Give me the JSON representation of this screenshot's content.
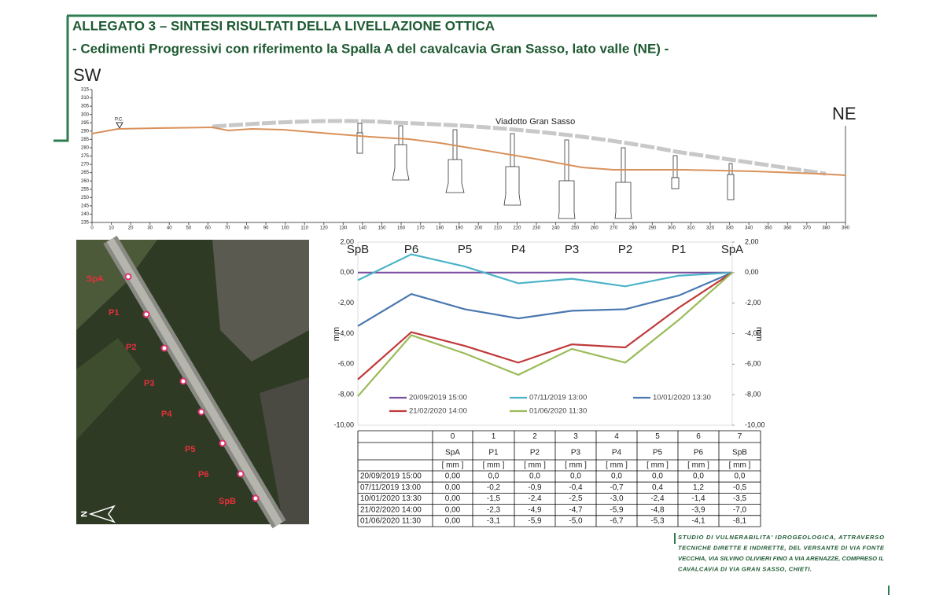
{
  "header": {
    "title": "ALLEGATO 3 – SINTESI RISULTATI DELLA LIVELLAZIONE OTTICA",
    "subtitle": "- Cedimenti Progressivi con riferimento la Spalla A del cavalcavia Gran Sasso, lato valle (NE) -"
  },
  "profile": {
    "left_label": "SW",
    "right_label": "NE",
    "bridge_label": "Viadotto Gran Sasso",
    "pc_label": "P.C.",
    "xlim": [
      0,
      390
    ],
    "ylim": [
      235,
      315
    ],
    "xticks": [
      0,
      10,
      20,
      30,
      40,
      50,
      60,
      70,
      80,
      90,
      100,
      110,
      120,
      130,
      140,
      150,
      160,
      170,
      180,
      190,
      200,
      210,
      220,
      230,
      240,
      250,
      260,
      270,
      280,
      290,
      300,
      310,
      320,
      330,
      340,
      350,
      360,
      370,
      380,
      390
    ],
    "yticks": [
      235,
      240,
      245,
      250,
      255,
      260,
      265,
      270,
      275,
      280,
      285,
      290,
      295,
      300,
      305,
      310,
      315
    ]
  },
  "map": {
    "labels": [
      "SpA",
      "P1",
      "P2",
      "P3",
      "P4",
      "P5",
      "P6",
      "SpB"
    ],
    "north": "N"
  },
  "chart_data": {
    "type": "line",
    "categories": [
      "SpB",
      "P6",
      "P5",
      "P4",
      "P3",
      "P2",
      "P1",
      "SpA"
    ],
    "y_label": "mm",
    "y2_label": "mm",
    "ylim": [
      -10,
      2
    ],
    "yticks": [
      {
        "value": 2,
        "label": "2,00"
      },
      {
        "value": 0,
        "label": "0,00"
      },
      {
        "value": -2,
        "label": "-2,00"
      },
      {
        "value": -4,
        "label": "-4,00"
      },
      {
        "value": -6,
        "label": "-6,00"
      },
      {
        "value": -8,
        "label": "-8,00"
      },
      {
        "value": -10,
        "label": "-10,00"
      }
    ],
    "y2lim": [
      -10,
      2
    ],
    "y2ticks": [
      {
        "value": 2,
        "label": "2,00"
      },
      {
        "value": 0,
        "label": "0,00"
      },
      {
        "value": -2,
        "label": "-2,00"
      },
      {
        "value": -4,
        "label": "-4,00"
      },
      {
        "value": -6,
        "label": "-6,00"
      },
      {
        "value": -8,
        "label": "-8,00"
      },
      {
        "value": -10,
        "label": "-10,00"
      }
    ],
    "series": [
      {
        "name": "20/09/2019 15:00",
        "color": "#7b4fa0",
        "values": [
          0,
          0,
          0,
          0,
          0,
          0,
          0,
          0
        ]
      },
      {
        "name": "07/11/2019 13:00",
        "color": "#4bb3c8",
        "values": [
          -0.5,
          1.2,
          0.4,
          -0.7,
          -0.4,
          -0.9,
          -0.2,
          0
        ]
      },
      {
        "name": "10/01/2020 13:30",
        "color": "#4a78b0",
        "values": [
          -3.5,
          -1.4,
          -2.4,
          -3.0,
          -2.5,
          -2.4,
          -1.5,
          0
        ]
      },
      {
        "name": "21/02/2020 14:00",
        "color": "#c0393b",
        "values": [
          -7.0,
          -3.9,
          -4.8,
          -5.9,
          -4.7,
          -4.9,
          -2.3,
          0
        ]
      },
      {
        "name": "01/06/2020 11:30",
        "color": "#9bbb59",
        "values": [
          -8.1,
          -4.1,
          -5.3,
          -6.7,
          -5.0,
          -5.9,
          -3.1,
          0
        ]
      }
    ]
  },
  "table": {
    "columns": [
      "0",
      "1",
      "2",
      "3",
      "4",
      "5",
      "6",
      "7"
    ],
    "names": [
      "SpA",
      "P1",
      "P2",
      "P3",
      "P4",
      "P5",
      "P6",
      "SpB"
    ],
    "unit": "[ mm ]",
    "rows": [
      {
        "date": "20/09/2019 15:00",
        "values": [
          "0,00",
          "0,0",
          "0,0",
          "0,0",
          "0,0",
          "0,0",
          "0,0",
          "0,0"
        ]
      },
      {
        "date": "07/11/2019 13:00",
        "values": [
          "0,00",
          "-0,2",
          "-0,9",
          "-0,4",
          "-0,7",
          "0,4",
          "1,2",
          "-0,5"
        ]
      },
      {
        "date": "10/01/2020 13:30",
        "values": [
          "0,00",
          "-1,5",
          "-2,4",
          "-2,5",
          "-3,0",
          "-2,4",
          "-1,4",
          "-3,5"
        ]
      },
      {
        "date": "21/02/2020 14:00",
        "values": [
          "0,00",
          "-2,3",
          "-4,9",
          "-4,7",
          "-5,9",
          "-4,8",
          "-3,9",
          "-7,0"
        ]
      },
      {
        "date": "01/06/2020 11:30",
        "values": [
          "0,00",
          "-3,1",
          "-5,9",
          "-5,0",
          "-6,7",
          "-5,3",
          "-4,1",
          "-8,1"
        ]
      }
    ]
  },
  "footer": {
    "lines": [
      "STUDIO DI VULNERABILITA' IDROGEOLOGICA, ATTRAVERSO",
      "TECNICHE DIRETTE E INDIRETTE, DEL VERSANTE DI VIA FONTE",
      "VECCHIA, VIA SILVINO OLIVIERI FINO A VIA ARENAZZE, COMPRESO IL",
      "CAVALCAVIA DI VIA GRAN SASSO, CHIETI."
    ]
  }
}
